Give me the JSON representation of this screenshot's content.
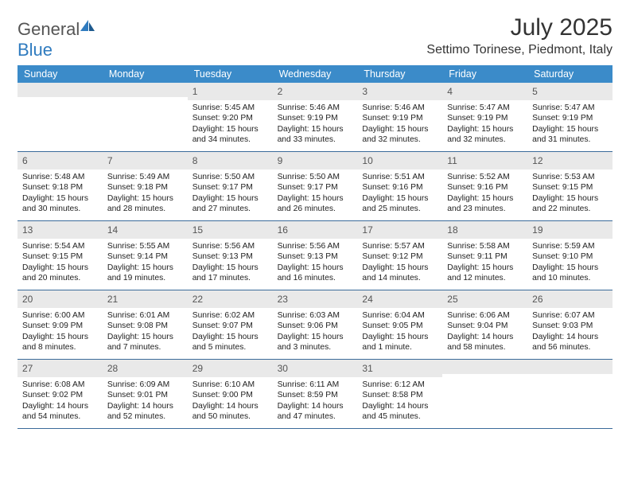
{
  "logo": {
    "text_general": "General",
    "text_blue": "Blue"
  },
  "title": "July 2025",
  "location": "Settimo Torinese, Piedmont, Italy",
  "colors": {
    "header_bg": "#3b8bc9",
    "week_border": "#3b6b9a",
    "daynum_bg": "#e9e9e9",
    "text": "#222222",
    "logo_gray": "#555555",
    "logo_blue": "#2f7bbf"
  },
  "weekdays": [
    "Sunday",
    "Monday",
    "Tuesday",
    "Wednesday",
    "Thursday",
    "Friday",
    "Saturday"
  ],
  "weeks": [
    [
      null,
      null,
      {
        "n": "1",
        "sr": "5:45 AM",
        "ss": "9:20 PM",
        "dl": "15 hours and 34 minutes."
      },
      {
        "n": "2",
        "sr": "5:46 AM",
        "ss": "9:19 PM",
        "dl": "15 hours and 33 minutes."
      },
      {
        "n": "3",
        "sr": "5:46 AM",
        "ss": "9:19 PM",
        "dl": "15 hours and 32 minutes."
      },
      {
        "n": "4",
        "sr": "5:47 AM",
        "ss": "9:19 PM",
        "dl": "15 hours and 32 minutes."
      },
      {
        "n": "5",
        "sr": "5:47 AM",
        "ss": "9:19 PM",
        "dl": "15 hours and 31 minutes."
      }
    ],
    [
      {
        "n": "6",
        "sr": "5:48 AM",
        "ss": "9:18 PM",
        "dl": "15 hours and 30 minutes."
      },
      {
        "n": "7",
        "sr": "5:49 AM",
        "ss": "9:18 PM",
        "dl": "15 hours and 28 minutes."
      },
      {
        "n": "8",
        "sr": "5:50 AM",
        "ss": "9:17 PM",
        "dl": "15 hours and 27 minutes."
      },
      {
        "n": "9",
        "sr": "5:50 AM",
        "ss": "9:17 PM",
        "dl": "15 hours and 26 minutes."
      },
      {
        "n": "10",
        "sr": "5:51 AM",
        "ss": "9:16 PM",
        "dl": "15 hours and 25 minutes."
      },
      {
        "n": "11",
        "sr": "5:52 AM",
        "ss": "9:16 PM",
        "dl": "15 hours and 23 minutes."
      },
      {
        "n": "12",
        "sr": "5:53 AM",
        "ss": "9:15 PM",
        "dl": "15 hours and 22 minutes."
      }
    ],
    [
      {
        "n": "13",
        "sr": "5:54 AM",
        "ss": "9:15 PM",
        "dl": "15 hours and 20 minutes."
      },
      {
        "n": "14",
        "sr": "5:55 AM",
        "ss": "9:14 PM",
        "dl": "15 hours and 19 minutes."
      },
      {
        "n": "15",
        "sr": "5:56 AM",
        "ss": "9:13 PM",
        "dl": "15 hours and 17 minutes."
      },
      {
        "n": "16",
        "sr": "5:56 AM",
        "ss": "9:13 PM",
        "dl": "15 hours and 16 minutes."
      },
      {
        "n": "17",
        "sr": "5:57 AM",
        "ss": "9:12 PM",
        "dl": "15 hours and 14 minutes."
      },
      {
        "n": "18",
        "sr": "5:58 AM",
        "ss": "9:11 PM",
        "dl": "15 hours and 12 minutes."
      },
      {
        "n": "19",
        "sr": "5:59 AM",
        "ss": "9:10 PM",
        "dl": "15 hours and 10 minutes."
      }
    ],
    [
      {
        "n": "20",
        "sr": "6:00 AM",
        "ss": "9:09 PM",
        "dl": "15 hours and 8 minutes."
      },
      {
        "n": "21",
        "sr": "6:01 AM",
        "ss": "9:08 PM",
        "dl": "15 hours and 7 minutes."
      },
      {
        "n": "22",
        "sr": "6:02 AM",
        "ss": "9:07 PM",
        "dl": "15 hours and 5 minutes."
      },
      {
        "n": "23",
        "sr": "6:03 AM",
        "ss": "9:06 PM",
        "dl": "15 hours and 3 minutes."
      },
      {
        "n": "24",
        "sr": "6:04 AM",
        "ss": "9:05 PM",
        "dl": "15 hours and 1 minute."
      },
      {
        "n": "25",
        "sr": "6:06 AM",
        "ss": "9:04 PM",
        "dl": "14 hours and 58 minutes."
      },
      {
        "n": "26",
        "sr": "6:07 AM",
        "ss": "9:03 PM",
        "dl": "14 hours and 56 minutes."
      }
    ],
    [
      {
        "n": "27",
        "sr": "6:08 AM",
        "ss": "9:02 PM",
        "dl": "14 hours and 54 minutes."
      },
      {
        "n": "28",
        "sr": "6:09 AM",
        "ss": "9:01 PM",
        "dl": "14 hours and 52 minutes."
      },
      {
        "n": "29",
        "sr": "6:10 AM",
        "ss": "9:00 PM",
        "dl": "14 hours and 50 minutes."
      },
      {
        "n": "30",
        "sr": "6:11 AM",
        "ss": "8:59 PM",
        "dl": "14 hours and 47 minutes."
      },
      {
        "n": "31",
        "sr": "6:12 AM",
        "ss": "8:58 PM",
        "dl": "14 hours and 45 minutes."
      },
      null,
      null
    ]
  ],
  "labels": {
    "sunrise": "Sunrise:",
    "sunset": "Sunset:",
    "daylight": "Daylight:"
  }
}
